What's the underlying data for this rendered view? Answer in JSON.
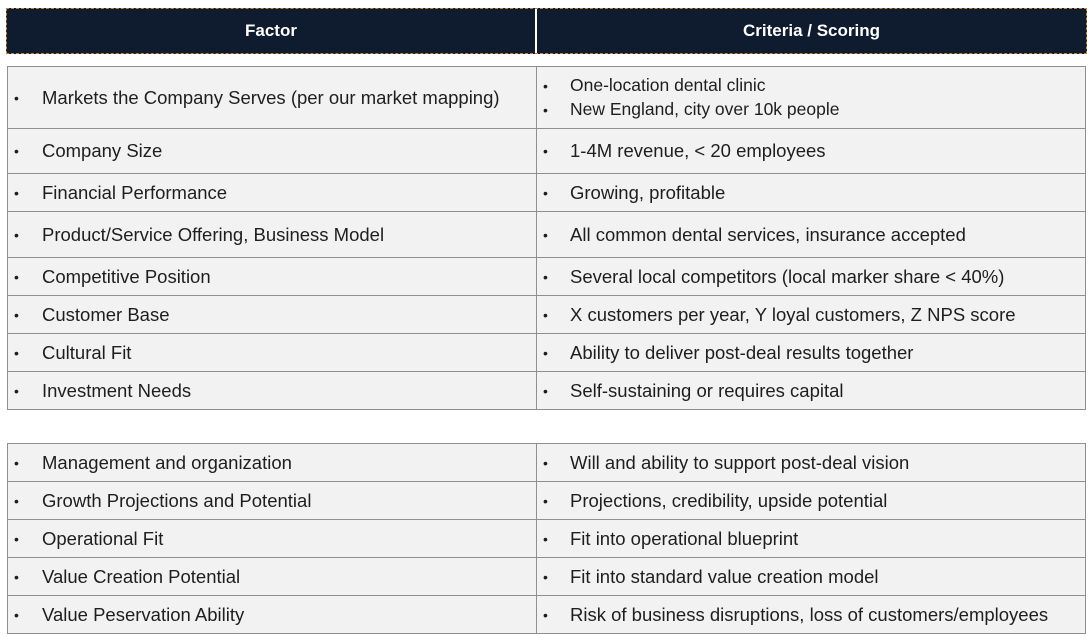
{
  "header": {
    "col1": "Factor",
    "col2": "Criteria / Scoring"
  },
  "table1": [
    {
      "factor": "Markets the Company Serves  (per our market mapping)",
      "criteria": [
        "One-location dental clinic",
        "New England, city over 10k people"
      ]
    },
    {
      "factor": "Company Size",
      "criteria": [
        "1-4M revenue, < 20 employees"
      ]
    },
    {
      "factor": "Financial Performance",
      "criteria": [
        "Growing, profitable"
      ]
    },
    {
      "factor": "Product/Service Offering, Business Model",
      "criteria": [
        "All common dental services, insurance accepted"
      ]
    },
    {
      "factor": "Competitive Position",
      "criteria": [
        "Several local competitors (local marker share < 40%)"
      ]
    },
    {
      "factor": "Customer Base",
      "criteria": [
        "X customers per year, Y loyal customers, Z NPS score"
      ]
    },
    {
      "factor": "Cultural Fit",
      "criteria": [
        "Ability to deliver post-deal results together"
      ]
    },
    {
      "factor": "Investment Needs",
      "criteria": [
        "Self-sustaining or requires capital"
      ]
    }
  ],
  "table2": [
    {
      "factor": "Management and organization",
      "criteria": [
        "Will and ability to support post-deal vision"
      ]
    },
    {
      "factor": "Growth Projections and Potential",
      "criteria": [
        "Projections, credibility, upside potential"
      ]
    },
    {
      "factor": "Operational Fit",
      "criteria": [
        "Fit into operational blueprint"
      ]
    },
    {
      "factor": "Value Creation Potential",
      "criteria": [
        "Fit into standard value creation model"
      ]
    },
    {
      "factor": "Value Peservation Ability",
      "criteria": [
        "Risk of business disruptions, loss of customers/employees"
      ]
    }
  ],
  "bullet": "•"
}
